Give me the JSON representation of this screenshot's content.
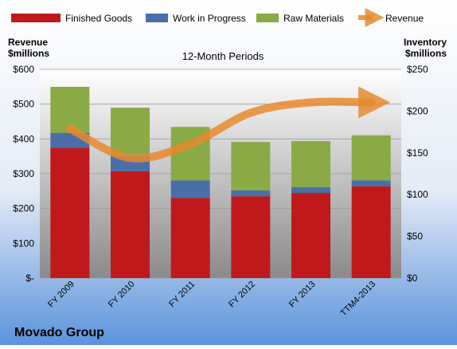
{
  "chart_data": {
    "type": "bar",
    "subtitle": "12-Month Periods",
    "company": "Movado Group",
    "left_axis_label": [
      "Revenue",
      "$millions"
    ],
    "right_axis_label": [
      "Inventory",
      "$millions"
    ],
    "categories": [
      "FY 2009",
      "FY 2010",
      "FY 2011",
      "FY 2012",
      "FY 2013",
      "TTM4-2013"
    ],
    "stacked": true,
    "series": [
      {
        "name": "Finished Goods",
        "color": "#c0191c",
        "values": [
          156,
          128,
          96,
          98,
          102,
          110
        ]
      },
      {
        "name": "Work in Progress",
        "color": "#4a6fa8",
        "values": [
          18,
          18,
          21,
          7,
          7,
          7
        ]
      },
      {
        "name": "Raw Materials",
        "color": "#8aaa45",
        "values": [
          55,
          58,
          64,
          58,
          55,
          54
        ]
      }
    ],
    "revenue_series": {
      "name": "Revenue",
      "color": "#e8892f",
      "values": [
        430,
        345,
        385,
        475,
        505,
        505
      ]
    },
    "left_axis": {
      "min": 0,
      "max": 600,
      "ticks": [
        "$-",
        "$100",
        "$200",
        "$300",
        "$400",
        "$500",
        "$600"
      ]
    },
    "right_axis": {
      "min": 0,
      "max": 250,
      "ticks": [
        "$0",
        "$50",
        "$100",
        "$150",
        "$200",
        "$250"
      ]
    },
    "legend_position": "top",
    "grid": true
  }
}
